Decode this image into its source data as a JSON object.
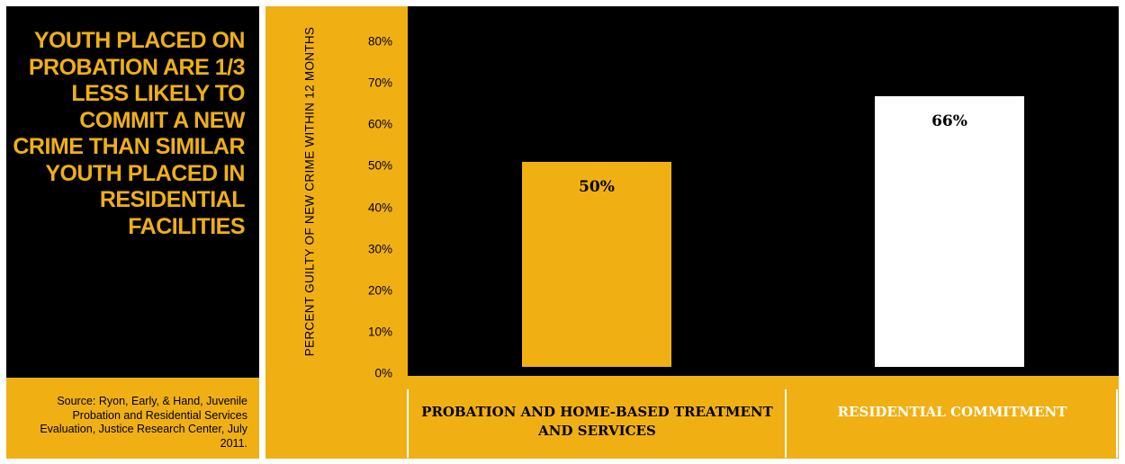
{
  "headline": "YOUTH PLACED ON PROBATION ARE 1/3 LESS LIKELY TO COMMIT A NEW CRIME THAN SIMILAR YOUTH PLACED IN RESIDENTIAL FACILITIES",
  "source": "Source: Ryon, Early, & Hand, Juvenile Probation and Residential Services Evaluation, Justice Research Center, July 2011.",
  "colors": {
    "accent": "#f0b013",
    "dark": "#000000",
    "light": "#ffffff"
  },
  "chart_data": {
    "type": "bar",
    "title": "",
    "xlabel": "",
    "ylabel": "PERCENT GUILTY OF NEW CRIME WITHIN 12 MONTHS",
    "ylim": [
      0,
      80
    ],
    "yticks": [
      0,
      10,
      20,
      30,
      40,
      50,
      60,
      70,
      80
    ],
    "ytick_labels": [
      "0%",
      "10%",
      "20%",
      "30%",
      "40%",
      "50%",
      "60%",
      "70%",
      "80%"
    ],
    "categories": [
      "PROBATION AND HOME-BASED TREATMENT AND SERVICES",
      "RESIDENTIAL COMMITMENT"
    ],
    "values": [
      50,
      66
    ],
    "value_labels": [
      "50%",
      "66%"
    ],
    "bar_colors": [
      "#f0b013",
      "#ffffff"
    ],
    "category_label_colors": [
      "#000000",
      "#ffffff"
    ],
    "grid": false,
    "legend": "none"
  }
}
